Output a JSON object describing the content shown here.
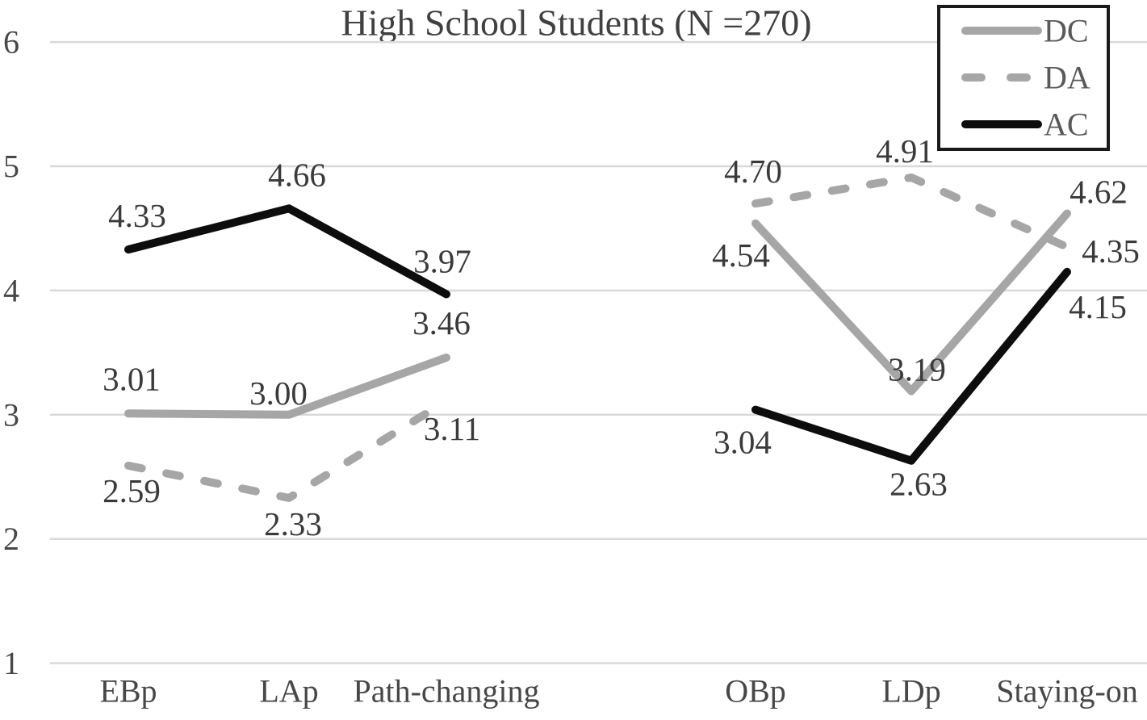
{
  "title": "High School Students (N =270)",
  "colors": {
    "series_gray": "#a6a6a6",
    "series_black": "#0d0d0d",
    "gridline": "#d9d9d9",
    "title_text": "#404040",
    "data_label_text": "#3a3a3a",
    "axis_text": "#474747",
    "legend_text": "#595959",
    "legend_border": "#1a1a1a",
    "background": "#ffffff"
  },
  "chart_data": {
    "type": "line",
    "title": "High School Students (N =270)",
    "xlabel": "",
    "ylabel": "",
    "y_axis": {
      "min": 1,
      "max": 6,
      "ticks": [
        "1",
        "2",
        "3",
        "4",
        "5",
        "6"
      ]
    },
    "grid": true,
    "groups": [
      {
        "categories": [
          "EBp",
          "LAp",
          "Path-changing"
        ]
      },
      {
        "categories": [
          "OBp",
          "LDp",
          "Staying-on"
        ]
      }
    ],
    "series": [
      {
        "name": "DC",
        "line_style": "solid",
        "color": "#a6a6a6",
        "values": [
          [
            3.01,
            3.0,
            3.46
          ],
          [
            4.54,
            3.19,
            4.62
          ]
        ],
        "labels": [
          [
            "3.01",
            "3.00",
            "3.46"
          ],
          [
            "4.54",
            "3.19",
            "4.62"
          ]
        ]
      },
      {
        "name": "DA",
        "line_style": "dashed",
        "color": "#a6a6a6",
        "values": [
          [
            2.59,
            2.33,
            3.11
          ],
          [
            4.7,
            4.91,
            4.35
          ]
        ],
        "labels": [
          [
            "2.59",
            "2.33",
            "3.11"
          ],
          [
            "4.70",
            "4.91",
            "4.35"
          ]
        ]
      },
      {
        "name": "AC",
        "line_style": "solid",
        "color": "#0d0d0d",
        "values": [
          [
            4.33,
            4.66,
            3.97
          ],
          [
            3.04,
            2.63,
            4.15
          ]
        ],
        "labels": [
          [
            "4.33",
            "4.66",
            "3.97"
          ],
          [
            "3.04",
            "2.63",
            "4.15"
          ]
        ]
      }
    ],
    "legend": {
      "position": "top-right",
      "entries": [
        "DC",
        "DA",
        "AC"
      ]
    }
  }
}
